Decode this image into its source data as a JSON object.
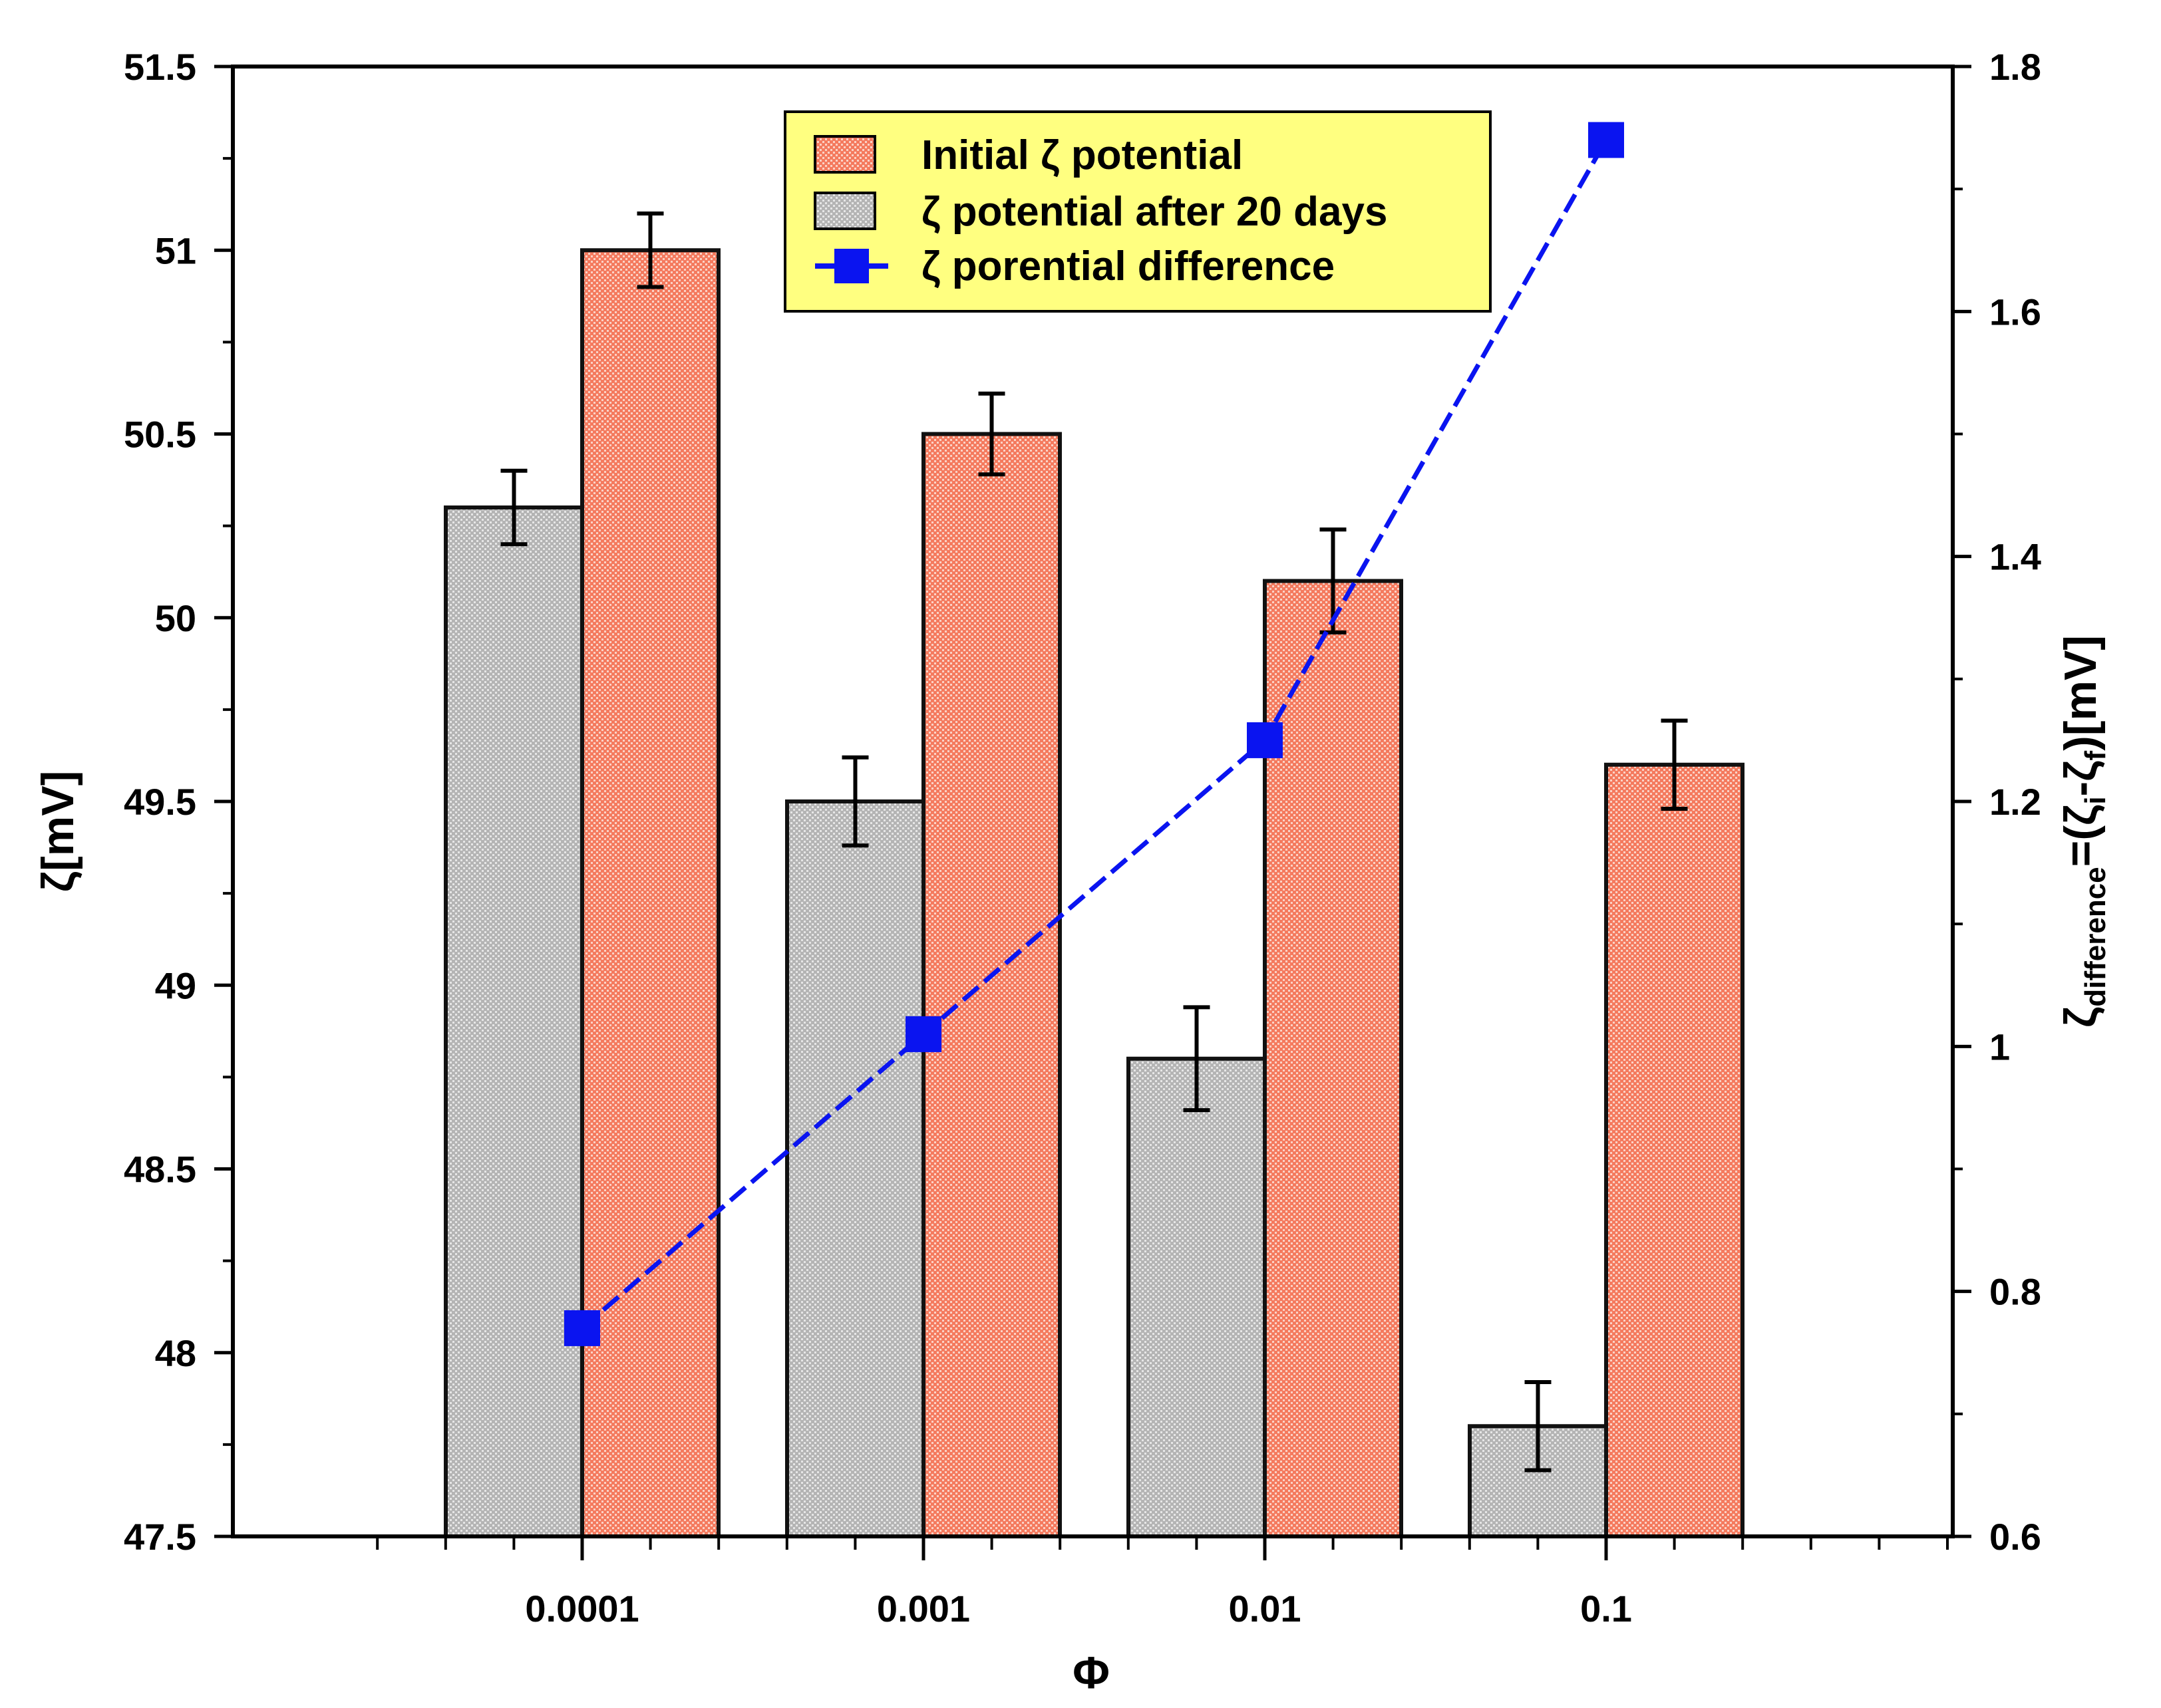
{
  "chart_data": {
    "type": "bar",
    "categories": [
      "0.0001",
      "0.001",
      "0.01",
      "0.1"
    ],
    "xlabel": "Φ",
    "ylabel": "ζ[mV]",
    "y2label": {
      "base": "ζ",
      "sub1": "difference",
      "mid": "=(ζ",
      "sub2": "i",
      "dash": "-ζ",
      "sub3": "f",
      "end": ")[mV]"
    },
    "ylim": [
      47.5,
      51.5
    ],
    "yticks": [
      "47.5",
      "48",
      "48.5",
      "49",
      "49.5",
      "50",
      "50.5",
      "51",
      "51.5"
    ],
    "y2lim": [
      0.6,
      1.8
    ],
    "y2ticks": [
      "0.6",
      "0.8",
      "1",
      "1.2",
      "1.4",
      "1.6",
      "1.8"
    ],
    "series": [
      {
        "name": "ζ potential after 20 days",
        "kind": "bar",
        "axis": "left",
        "color": "#c8c8c8",
        "values": [
          50.3,
          49.5,
          48.8,
          47.8
        ],
        "errors": [
          0.1,
          0.12,
          0.14,
          0.12
        ]
      },
      {
        "name": "Initial ζ potential",
        "kind": "bar",
        "axis": "left",
        "color": "#f47a5e",
        "values": [
          51.0,
          50.5,
          50.1,
          49.6
        ],
        "errors": [
          0.1,
          0.11,
          0.14,
          0.12
        ]
      },
      {
        "name": "ζ porential difference",
        "kind": "line",
        "axis": "right",
        "color": "#0a14f0",
        "values": [
          0.77,
          1.01,
          1.25,
          1.74
        ]
      }
    ],
    "legend": {
      "position": "top-center",
      "background": "#ffff80",
      "entries": [
        "Initial ζ potential",
        "ζ potential after 20 days",
        "ζ porential difference"
      ]
    }
  }
}
